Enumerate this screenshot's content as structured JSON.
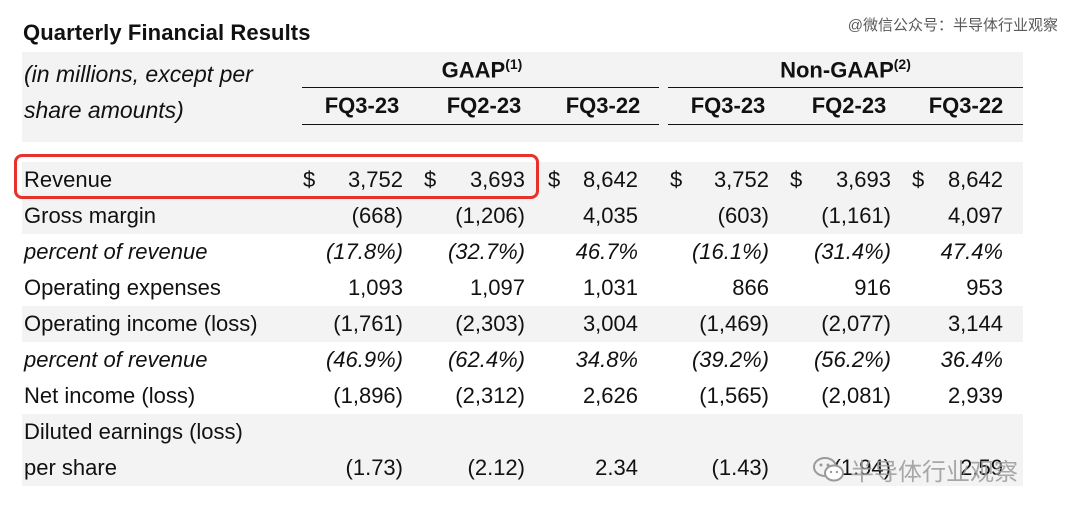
{
  "title": "Quarterly Financial Results",
  "watermark_top": "@微信公众号：半导体行业观察",
  "watermark_bottom": "半导体行业观察",
  "subtitle_line1": "(in millions, except per",
  "subtitle_line2": "share amounts)",
  "groups": [
    {
      "label": "GAAP",
      "note": "(1)"
    },
    {
      "label": "Non-GAAP",
      "note": "(2)"
    }
  ],
  "columns": [
    "FQ3-23",
    "FQ2-23",
    "FQ3-22",
    "FQ3-23",
    "FQ2-23",
    "FQ3-22"
  ],
  "highlight_color": "#e8312a",
  "rows": [
    {
      "label": "Revenue",
      "italic": false,
      "dollar": true,
      "values": [
        "3,752",
        "3,693",
        "8,642",
        "3,752",
        "3,693",
        "8,642"
      ]
    },
    {
      "label": "Gross margin",
      "italic": false,
      "dollar": false,
      "values": [
        "(668)",
        "(1,206)",
        "4,035",
        "(603)",
        "(1,161)",
        "4,097"
      ]
    },
    {
      "label": "percent of revenue",
      "italic": true,
      "dollar": false,
      "values": [
        "(17.8%)",
        "(32.7%)",
        "46.7%",
        "(16.1%)",
        "(31.4%)",
        "47.4%"
      ]
    },
    {
      "label": "Operating expenses",
      "italic": false,
      "dollar": false,
      "values": [
        "1,093",
        "1,097",
        "1,031",
        "866",
        "916",
        "953"
      ]
    },
    {
      "label": "Operating income (loss)",
      "italic": false,
      "dollar": false,
      "values": [
        "(1,761)",
        "(2,303)",
        "3,004",
        "(1,469)",
        "(2,077)",
        "3,144"
      ]
    },
    {
      "label": "percent of revenue",
      "italic": true,
      "dollar": false,
      "values": [
        "(46.9%)",
        "(62.4%)",
        "34.8%",
        "(39.2%)",
        "(56.2%)",
        "36.4%"
      ]
    },
    {
      "label": "Net income (loss)",
      "italic": false,
      "dollar": false,
      "values": [
        "(1,896)",
        "(2,312)",
        "2,626",
        "(1,565)",
        "(2,081)",
        "2,939"
      ]
    },
    {
      "label": "Diluted earnings (loss)",
      "italic": false,
      "dollar": false,
      "values": [
        "",
        "",
        "",
        "",
        "",
        ""
      ]
    },
    {
      "label": "per share",
      "italic": false,
      "dollar": false,
      "values": [
        "(1.73)",
        "(2.12)",
        "2.34",
        "(1.43)",
        "(1.94)",
        "2.59"
      ]
    }
  ],
  "dollar_sign": "$"
}
